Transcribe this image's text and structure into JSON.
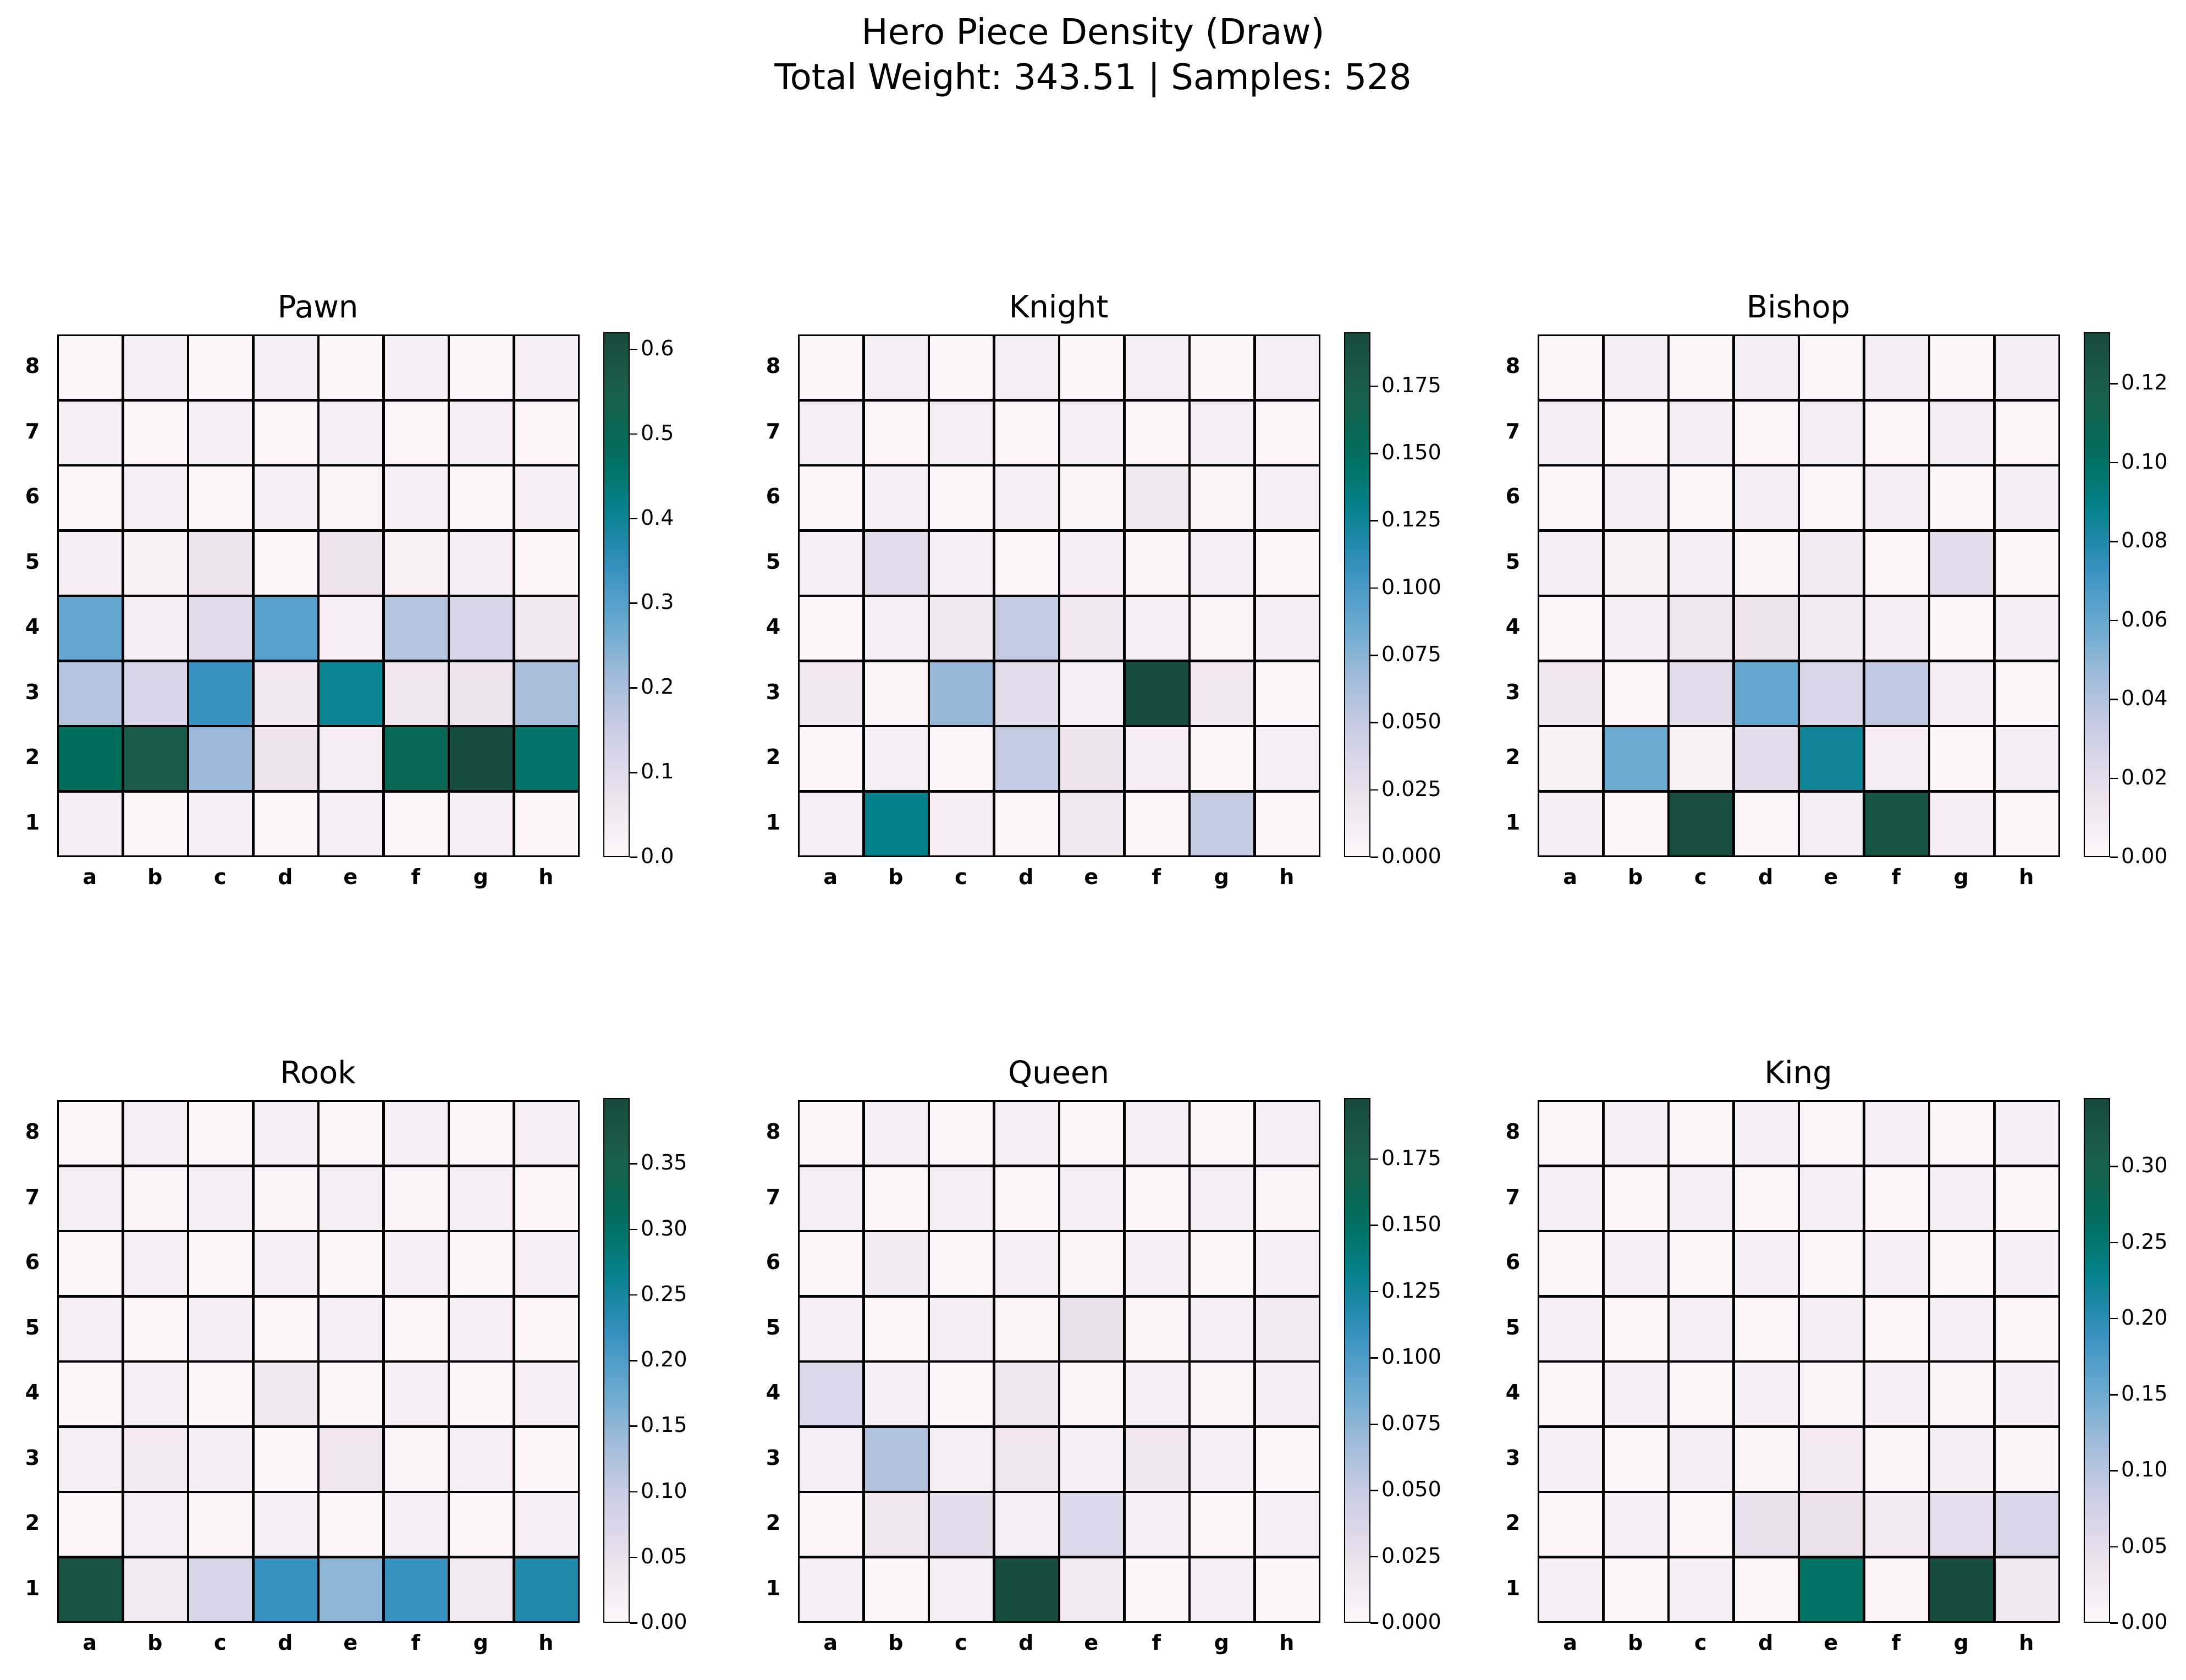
{
  "title_lines": [
    "Hero Piece Density (Draw)",
    "Total Weight: 343.51 | Samples: 528"
  ],
  "chart_data": {
    "type": "heatmap",
    "files": [
      "a",
      "b",
      "c",
      "d",
      "e",
      "f",
      "g",
      "h"
    ],
    "ranks": [
      "8",
      "7",
      "6",
      "5",
      "4",
      "3",
      "2",
      "1"
    ],
    "colormap": [
      "#fff7fb",
      "#eee2ed",
      "#d0d1e6",
      "#a6bddb",
      "#67a9cf",
      "#3690c0",
      "#02818a",
      "#016c59",
      "#1b5e4b",
      "#164a3c"
    ],
    "panels": [
      {
        "title": "Pawn",
        "vmin": 0,
        "vmax": 0.62,
        "ticks": [
          0.0,
          0.1,
          0.2,
          0.3,
          0.4,
          0.5,
          0.6
        ],
        "tick_labels": [
          "0.0",
          "0.1",
          "0.2",
          "0.3",
          "0.4",
          "0.5",
          "0.6"
        ],
        "values": [
          [
            0.005,
            0.03,
            0.005,
            0.03,
            0.005,
            0.03,
            0.005,
            0.03
          ],
          [
            0.03,
            0.005,
            0.03,
            0.005,
            0.03,
            0.005,
            0.03,
            0.005
          ],
          [
            0.005,
            0.03,
            0.005,
            0.03,
            0.015,
            0.03,
            0.005,
            0.03
          ],
          [
            0.04,
            0.02,
            0.07,
            0.005,
            0.07,
            0.02,
            0.04,
            0.005
          ],
          [
            0.28,
            0.04,
            0.1,
            0.3,
            0.03,
            0.18,
            0.12,
            0.05
          ],
          [
            0.18,
            0.12,
            0.34,
            0.05,
            0.4,
            0.06,
            0.07,
            0.2
          ],
          [
            0.48,
            0.56,
            0.22,
            0.07,
            0.04,
            0.5,
            0.61,
            0.46
          ],
          [
            0.04,
            0.005,
            0.03,
            0.005,
            0.03,
            0.005,
            0.03,
            0.005
          ]
        ]
      },
      {
        "title": "Knight",
        "vmin": 0,
        "vmax": 0.195,
        "ticks": [
          0.0,
          0.025,
          0.05,
          0.075,
          0.1,
          0.125,
          0.15,
          0.175
        ],
        "tick_labels": [
          "0.000",
          "0.025",
          "0.050",
          "0.075",
          "0.100",
          "0.125",
          "0.150",
          "0.175"
        ],
        "values": [
          [
            0.002,
            0.01,
            0.002,
            0.01,
            0.002,
            0.01,
            0.002,
            0.01
          ],
          [
            0.01,
            0.002,
            0.01,
            0.002,
            0.01,
            0.002,
            0.01,
            0.002
          ],
          [
            0.002,
            0.01,
            0.002,
            0.01,
            0.005,
            0.015,
            0.005,
            0.01
          ],
          [
            0.01,
            0.03,
            0.01,
            0.002,
            0.012,
            0.005,
            0.01,
            0.002
          ],
          [
            0.002,
            0.01,
            0.015,
            0.05,
            0.015,
            0.01,
            0.005,
            0.012
          ],
          [
            0.015,
            0.005,
            0.07,
            0.03,
            0.01,
            0.192,
            0.015,
            0.002
          ],
          [
            0.002,
            0.01,
            0.002,
            0.05,
            0.02,
            0.012,
            0.002,
            0.01
          ],
          [
            0.01,
            0.13,
            0.012,
            0.002,
            0.015,
            0.002,
            0.05,
            0.002
          ]
        ]
      },
      {
        "title": "Bishop",
        "vmin": 0,
        "vmax": 0.133,
        "ticks": [
          0.0,
          0.02,
          0.04,
          0.06,
          0.08,
          0.1,
          0.12
        ],
        "tick_labels": [
          "0.00",
          "0.02",
          "0.04",
          "0.06",
          "0.08",
          "0.10",
          "0.12"
        ],
        "values": [
          [
            0.002,
            0.008,
            0.002,
            0.008,
            0.002,
            0.008,
            0.002,
            0.008
          ],
          [
            0.008,
            0.002,
            0.008,
            0.002,
            0.008,
            0.002,
            0.008,
            0.002
          ],
          [
            0.002,
            0.008,
            0.002,
            0.008,
            0.002,
            0.008,
            0.002,
            0.008
          ],
          [
            0.008,
            0.004,
            0.008,
            0.003,
            0.01,
            0.002,
            0.02,
            0.002
          ],
          [
            0.002,
            0.008,
            0.012,
            0.015,
            0.01,
            0.008,
            0.002,
            0.008
          ],
          [
            0.012,
            0.002,
            0.02,
            0.06,
            0.025,
            0.035,
            0.008,
            0.002
          ],
          [
            0.004,
            0.058,
            0.004,
            0.02,
            0.085,
            0.008,
            0.002,
            0.008
          ],
          [
            0.008,
            0.002,
            0.13,
            0.002,
            0.008,
            0.125,
            0.008,
            0.002
          ]
        ]
      },
      {
        "title": "Rook",
        "vmin": 0,
        "vmax": 0.4,
        "ticks": [
          0.0,
          0.05,
          0.1,
          0.15,
          0.2,
          0.25,
          0.3,
          0.35
        ],
        "tick_labels": [
          "0.00",
          "0.05",
          "0.10",
          "0.15",
          "0.20",
          "0.25",
          "0.30",
          "0.35"
        ],
        "values": [
          [
            0.005,
            0.02,
            0.005,
            0.02,
            0.005,
            0.02,
            0.005,
            0.02
          ],
          [
            0.02,
            0.01,
            0.02,
            0.01,
            0.02,
            0.01,
            0.02,
            0.005
          ],
          [
            0.005,
            0.02,
            0.005,
            0.02,
            0.005,
            0.02,
            0.005,
            0.02
          ],
          [
            0.02,
            0.005,
            0.025,
            0.005,
            0.02,
            0.005,
            0.02,
            0.005
          ],
          [
            0.005,
            0.02,
            0.005,
            0.035,
            0.005,
            0.02,
            0.005,
            0.02
          ],
          [
            0.02,
            0.03,
            0.025,
            0.005,
            0.04,
            0.01,
            0.02,
            0.005
          ],
          [
            0.005,
            0.02,
            0.01,
            0.02,
            0.005,
            0.02,
            0.005,
            0.02
          ],
          [
            0.38,
            0.03,
            0.08,
            0.22,
            0.15,
            0.22,
            0.03,
            0.24
          ]
        ]
      },
      {
        "title": "Queen",
        "vmin": 0,
        "vmax": 0.198,
        "ticks": [
          0.0,
          0.025,
          0.05,
          0.075,
          0.1,
          0.125,
          0.15,
          0.175
        ],
        "tick_labels": [
          "0.000",
          "0.025",
          "0.050",
          "0.075",
          "0.100",
          "0.125",
          "0.150",
          "0.175"
        ],
        "values": [
          [
            0.002,
            0.01,
            0.002,
            0.01,
            0.002,
            0.01,
            0.002,
            0.01
          ],
          [
            0.01,
            0.002,
            0.01,
            0.002,
            0.01,
            0.002,
            0.01,
            0.005
          ],
          [
            0.002,
            0.015,
            0.002,
            0.01,
            0.005,
            0.01,
            0.002,
            0.01
          ],
          [
            0.01,
            0.002,
            0.012,
            0.004,
            0.025,
            0.005,
            0.01,
            0.015
          ],
          [
            0.035,
            0.01,
            0.002,
            0.018,
            0.005,
            0.01,
            0.005,
            0.012
          ],
          [
            0.01,
            0.06,
            0.01,
            0.02,
            0.01,
            0.018,
            0.01,
            0.002
          ],
          [
            0.002,
            0.02,
            0.03,
            0.01,
            0.035,
            0.01,
            0.002,
            0.01
          ],
          [
            0.01,
            0.002,
            0.01,
            0.195,
            0.015,
            0.002,
            0.01,
            0.002
          ]
        ]
      },
      {
        "title": "King",
        "vmin": 0,
        "vmax": 0.345,
        "ticks": [
          0.0,
          0.05,
          0.1,
          0.15,
          0.2,
          0.25,
          0.3
        ],
        "tick_labels": [
          "0.00",
          "0.05",
          "0.10",
          "0.15",
          "0.20",
          "0.25",
          "0.30"
        ],
        "values": [
          [
            0.005,
            0.015,
            0.005,
            0.015,
            0.005,
            0.015,
            0.005,
            0.015
          ],
          [
            0.015,
            0.005,
            0.015,
            0.005,
            0.015,
            0.005,
            0.015,
            0.005
          ],
          [
            0.005,
            0.015,
            0.005,
            0.015,
            0.005,
            0.015,
            0.005,
            0.015
          ],
          [
            0.015,
            0.005,
            0.015,
            0.005,
            0.02,
            0.005,
            0.015,
            0.005
          ],
          [
            0.005,
            0.015,
            0.005,
            0.015,
            0.01,
            0.015,
            0.01,
            0.015
          ],
          [
            0.015,
            0.005,
            0.02,
            0.01,
            0.025,
            0.01,
            0.02,
            0.008
          ],
          [
            0.005,
            0.015,
            0.005,
            0.045,
            0.04,
            0.025,
            0.05,
            0.065
          ],
          [
            0.015,
            0.005,
            0.015,
            0.005,
            0.26,
            0.01,
            0.34,
            0.03
          ]
        ]
      }
    ]
  }
}
